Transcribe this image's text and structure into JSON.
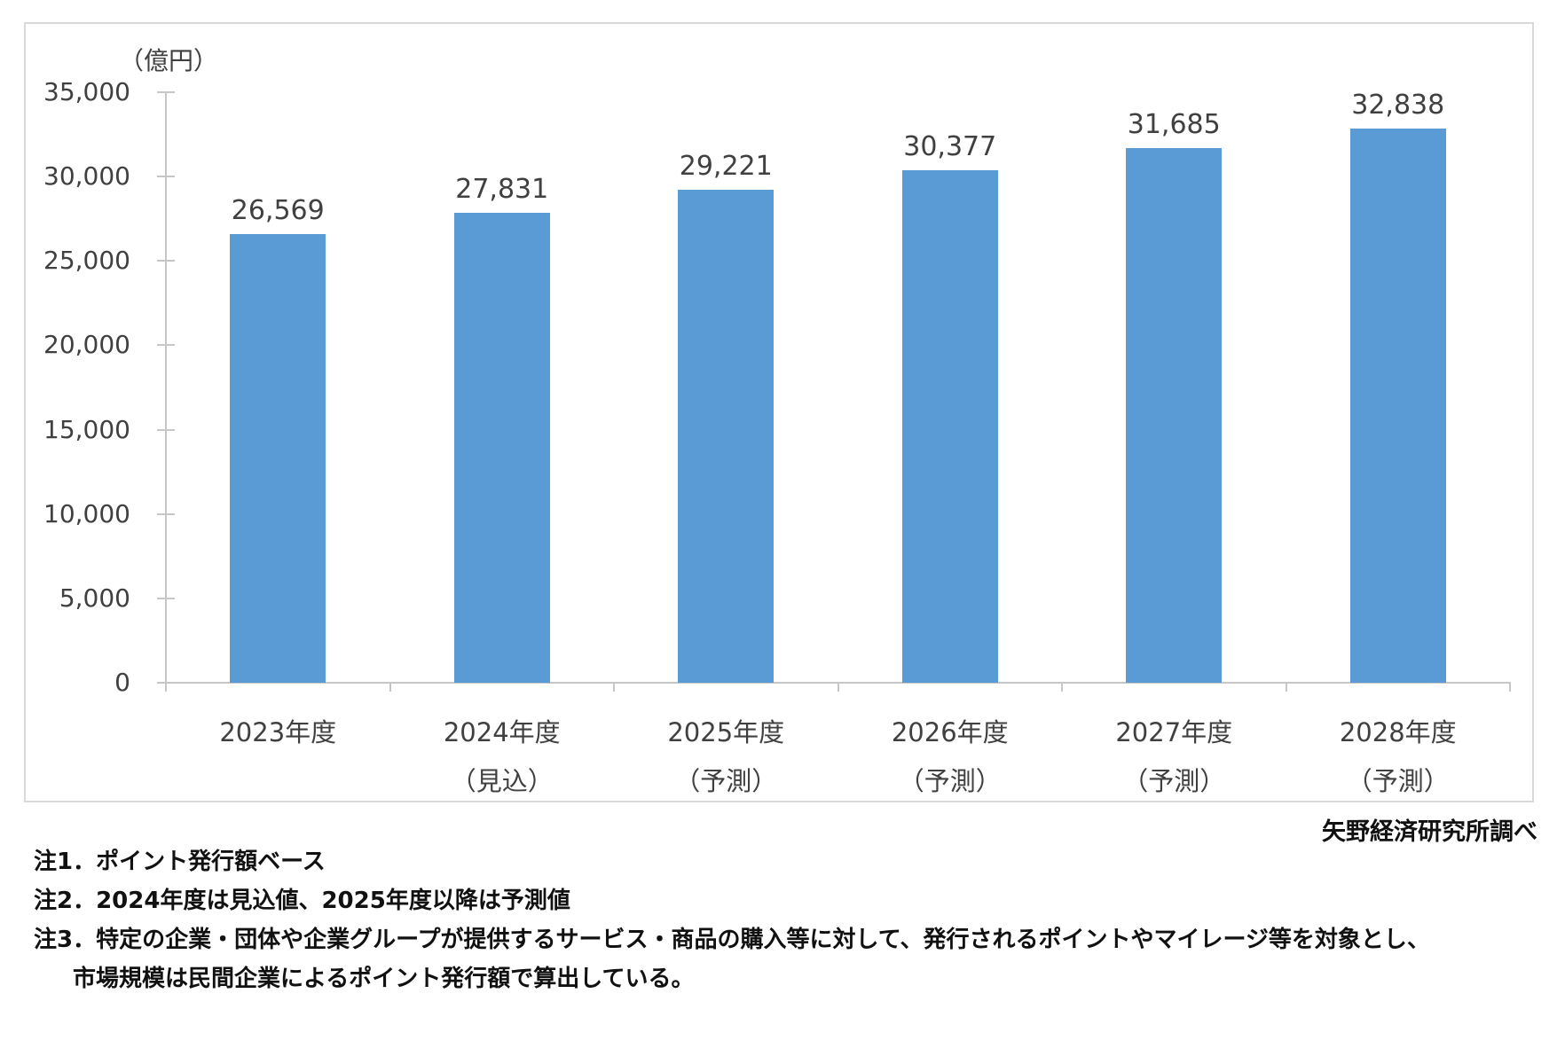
{
  "chart_data": {
    "type": "bar",
    "unit_label": "（億円）",
    "categories": [
      {
        "label": "2023年度",
        "sublabel": ""
      },
      {
        "label": "2024年度",
        "sublabel": "（見込）"
      },
      {
        "label": "2025年度",
        "sublabel": "（予測）"
      },
      {
        "label": "2026年度",
        "sublabel": "（予測）"
      },
      {
        "label": "2027年度",
        "sublabel": "（予測）"
      },
      {
        "label": "2028年度",
        "sublabel": "（予測）"
      }
    ],
    "values": [
      26569,
      27831,
      29221,
      30377,
      31685,
      32838
    ],
    "value_labels": [
      "26,569",
      "27,831",
      "29,221",
      "30,377",
      "31,685",
      "32,838"
    ],
    "ylim": [
      0,
      35000
    ],
    "ytick_step": 5000,
    "yticks": [
      "0",
      "5,000",
      "10,000",
      "15,000",
      "20,000",
      "25,000",
      "30,000",
      "35,000"
    ],
    "bar_color": "#5b9bd5",
    "axis_color": "#c6c6c6",
    "label_color": "#404040",
    "grid": false,
    "legend": "none"
  },
  "source": "矢野経済研究所調べ",
  "notes": [
    {
      "text": "注1．ポイント発行額ベース",
      "indent": false
    },
    {
      "text": "注2．2024年度は見込値、2025年度以降は予測値",
      "indent": false
    },
    {
      "text": "注3．特定の企業・団体や企業グループが提供するサービス・商品の購入等に対して、発行されるポイントやマイレージ等を対象とし、",
      "indent": false
    },
    {
      "text": "市場規模は民間企業によるポイント発行額で算出している。",
      "indent": true
    }
  ]
}
